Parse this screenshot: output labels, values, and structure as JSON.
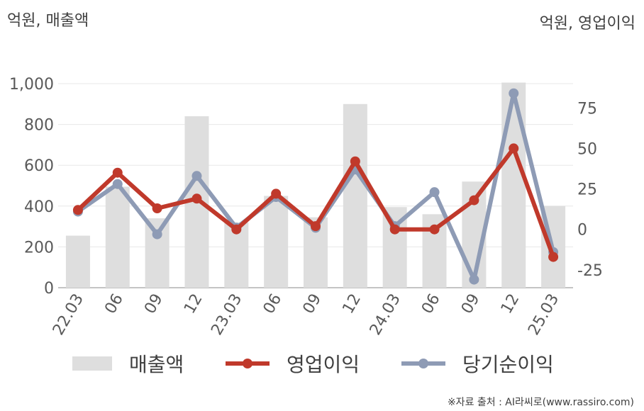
{
  "chart_data": {
    "type": "bar+line",
    "left_unit": "억원, 매출액",
    "right_unit": "억원, 영업이익",
    "categories": [
      "22.03",
      "06",
      "09",
      "12",
      "23.03",
      "06",
      "09",
      "12",
      "24.03",
      "06",
      "09",
      "12",
      "25.03"
    ],
    "y_left": {
      "ticks": [
        "0",
        "200",
        "400",
        "600",
        "800",
        "1,000"
      ],
      "tick_values": [
        0,
        200,
        400,
        600,
        800,
        1000
      ],
      "ylim": [
        0,
        1000
      ]
    },
    "y_right": {
      "ticks": [
        "-25",
        "0",
        "25",
        "50",
        "75"
      ],
      "tick_values": [
        -25,
        0,
        25,
        50,
        75
      ],
      "ylim": [
        -36,
        90
      ]
    },
    "grid": true,
    "series": [
      {
        "name": "매출액",
        "type": "bar",
        "axis": "left",
        "color": "#dedede",
        "values": [
          255,
          495,
          340,
          840,
          320,
          450,
          345,
          900,
          395,
          360,
          520,
          1005,
          400
        ]
      },
      {
        "name": "영업이익",
        "type": "line",
        "axis": "right",
        "color": "#c0392b",
        "values": [
          12,
          35,
          13,
          19,
          0,
          22,
          2,
          42,
          0,
          0,
          18,
          50,
          -17
        ]
      },
      {
        "name": "당기순이익",
        "type": "line",
        "axis": "right",
        "color": "#8e9bb5",
        "values": [
          11,
          28,
          -3,
          33,
          1,
          20,
          1,
          37,
          2,
          23,
          -31,
          84,
          -14
        ]
      }
    ],
    "legend_position": "bottom",
    "source": "※자료 출처 : AI라씨로(www.rassiro.com)"
  }
}
